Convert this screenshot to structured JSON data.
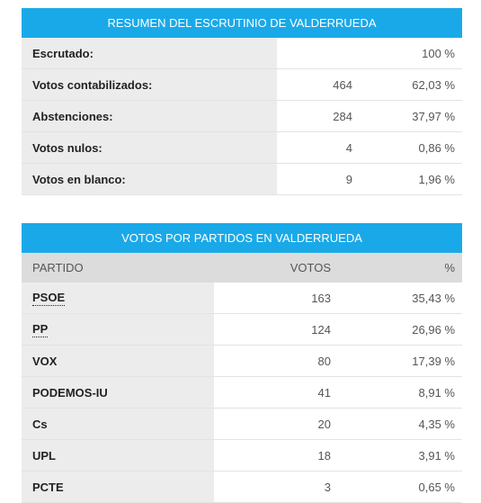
{
  "summary": {
    "title": "RESUMEN DEL ESCRUTINIO DE VALDERRUEDA",
    "rows": [
      {
        "label": "Escrutado:",
        "count": "",
        "percent": "100 %"
      },
      {
        "label": "Votos contabilizados:",
        "count": "464",
        "percent": "62,03 %"
      },
      {
        "label": "Abstenciones:",
        "count": "284",
        "percent": "37,97 %"
      },
      {
        "label": "Votos nulos:",
        "count": "4",
        "percent": "0,86 %"
      },
      {
        "label": "Votos en blanco:",
        "count": "9",
        "percent": "1,96 %"
      }
    ]
  },
  "parties": {
    "title": "VOTOS POR PARTIDOS EN VALDERRUEDA",
    "headers": {
      "party": "PARTIDO",
      "votes": "VOTOS",
      "percent": "%"
    },
    "rows": [
      {
        "party": "PSOE",
        "votes": "163",
        "percent": "35,43 %",
        "underlined": true
      },
      {
        "party": "PP",
        "votes": "124",
        "percent": "26,96 %",
        "underlined": true
      },
      {
        "party": "VOX",
        "votes": "80",
        "percent": "17,39 %",
        "underlined": false
      },
      {
        "party": "PODEMOS-IU",
        "votes": "41",
        "percent": "8,91 %",
        "underlined": false
      },
      {
        "party": "Cs",
        "votes": "20",
        "percent": "4,35 %",
        "underlined": false
      },
      {
        "party": "UPL",
        "votes": "18",
        "percent": "3,91 %",
        "underlined": false
      },
      {
        "party": "PCTE",
        "votes": "3",
        "percent": "0,65 %",
        "underlined": false
      }
    ]
  },
  "colors": {
    "header_bg": "#1aa9e8",
    "label_bg": "#ececec",
    "colhead_bg": "#dcdcdc"
  }
}
